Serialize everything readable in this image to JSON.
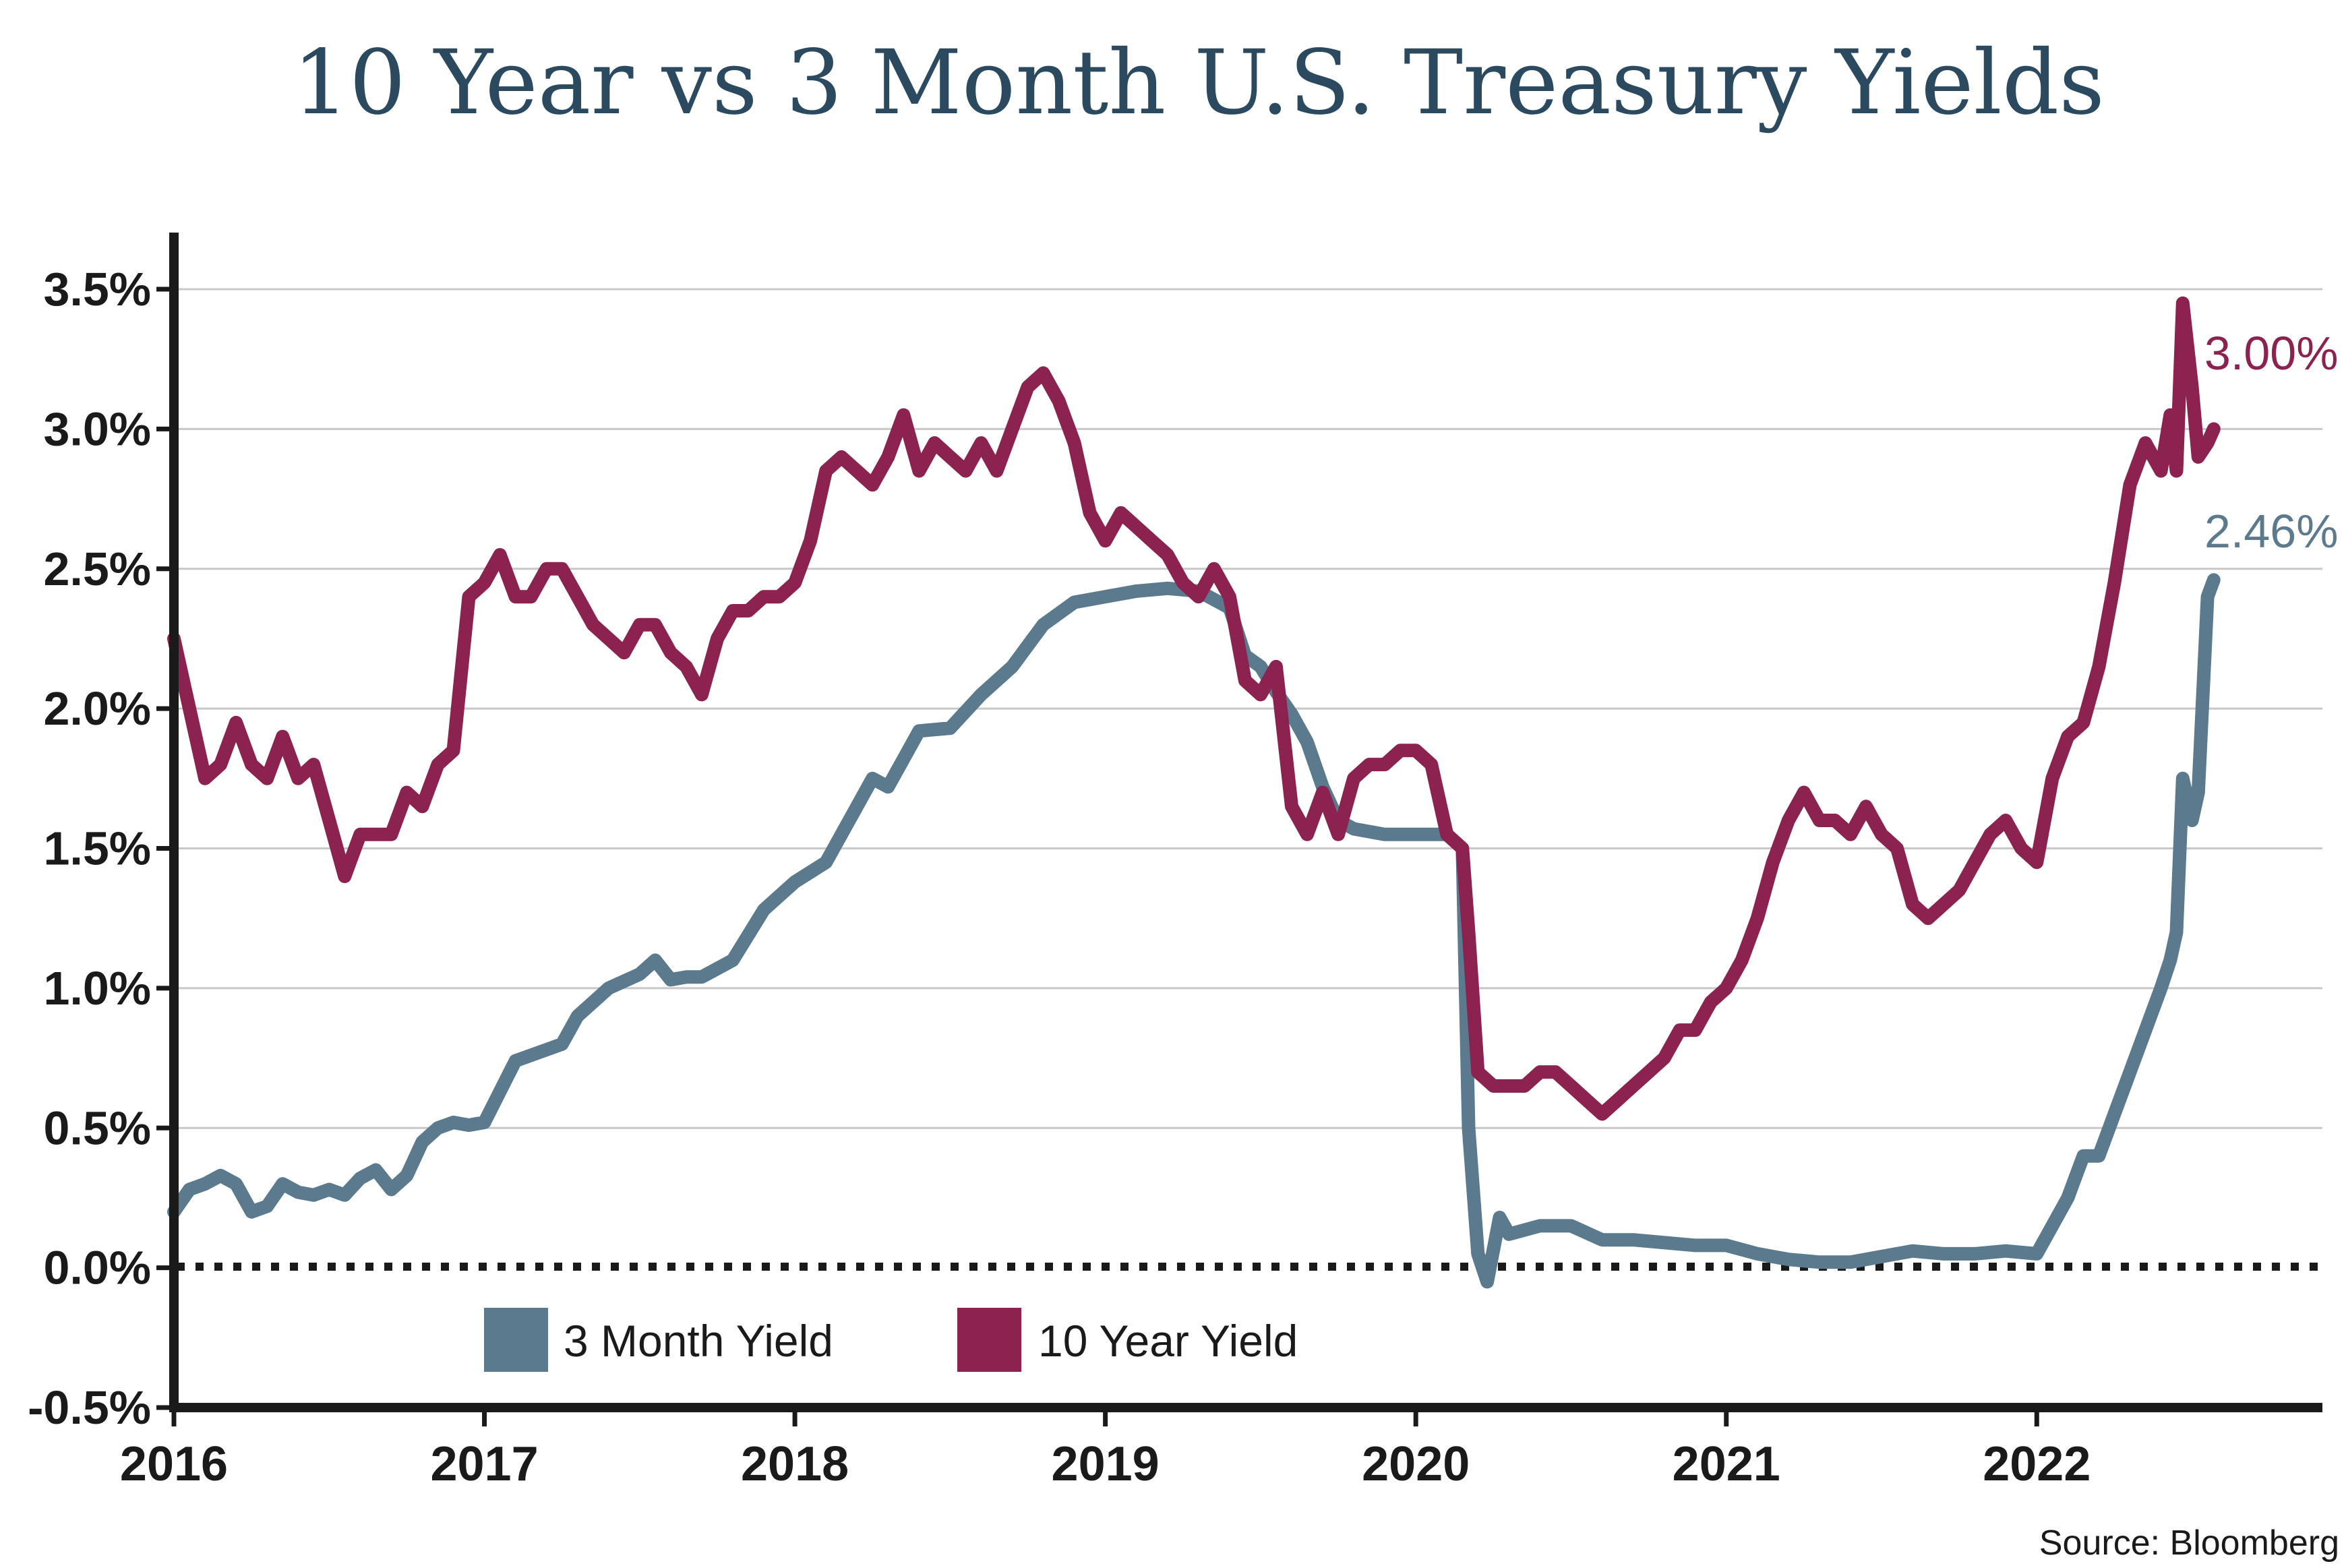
{
  "chart_data": {
    "type": "line",
    "title": "10 Year vs 3 Month U.S. Treasury Yields",
    "source": "Source: Bloomberg",
    "xlabel": "",
    "ylabel": "",
    "xlim": [
      2016.0,
      2022.92
    ],
    "ylim": [
      -0.5,
      3.5
    ],
    "y_ticks": [
      -0.5,
      0.0,
      0.5,
      1.0,
      1.5,
      2.0,
      2.5,
      3.0,
      3.5
    ],
    "y_tick_labels": [
      "-0.5%",
      "0.0%",
      "0.5%",
      "1.0%",
      "1.5%",
      "2.0%",
      "2.5%",
      "3.0%",
      "3.5%"
    ],
    "x_ticks": [
      2016,
      2017,
      2018,
      2019,
      2020,
      2021,
      2022
    ],
    "x_tick_labels": [
      "2016",
      "2017",
      "2018",
      "2019",
      "2020",
      "2021",
      "2022"
    ],
    "grid": "horizontal",
    "zero_line": "dotted",
    "legend_position": "bottom-left",
    "series": [
      {
        "name": "3 Month Yield",
        "color": "#5b7a8e",
        "end_label": "2.46%",
        "x": [
          2016.0,
          2016.05,
          2016.1,
          2016.15,
          2016.2,
          2016.25,
          2016.3,
          2016.35,
          2016.4,
          2016.45,
          2016.5,
          2016.55,
          2016.6,
          2016.65,
          2016.7,
          2016.75,
          2016.8,
          2016.85,
          2016.9,
          2016.95,
          2017.0,
          2017.1,
          2017.2,
          2017.25,
          2017.3,
          2017.4,
          2017.5,
          2017.55,
          2017.6,
          2017.65,
          2017.7,
          2017.8,
          2017.9,
          2018.0,
          2018.1,
          2018.2,
          2018.25,
          2018.3,
          2018.4,
          2018.5,
          2018.6,
          2018.7,
          2018.8,
          2018.9,
          2019.0,
          2019.1,
          2019.2,
          2019.3,
          2019.4,
          2019.45,
          2019.5,
          2019.55,
          2019.6,
          2019.65,
          2019.7,
          2019.75,
          2019.8,
          2019.9,
          2020.0,
          2020.1,
          2020.15,
          2020.17,
          2020.2,
          2020.23,
          2020.27,
          2020.3,
          2020.4,
          2020.5,
          2020.6,
          2020.7,
          2020.8,
          2020.9,
          2021.0,
          2021.1,
          2021.2,
          2021.3,
          2021.4,
          2021.5,
          2021.6,
          2021.7,
          2021.8,
          2021.9,
          2022.0,
          2022.05,
          2022.1,
          2022.15,
          2022.2,
          2022.25,
          2022.3,
          2022.35,
          2022.4,
          2022.43,
          2022.45,
          2022.47,
          2022.5,
          2022.52,
          2022.55,
          2022.57
        ],
        "y": [
          0.2,
          0.28,
          0.3,
          0.33,
          0.3,
          0.2,
          0.22,
          0.3,
          0.27,
          0.26,
          0.28,
          0.26,
          0.32,
          0.35,
          0.28,
          0.33,
          0.45,
          0.5,
          0.52,
          0.51,
          0.52,
          0.74,
          0.78,
          0.8,
          0.9,
          1.0,
          1.05,
          1.1,
          1.03,
          1.04,
          1.04,
          1.1,
          1.28,
          1.38,
          1.45,
          1.65,
          1.75,
          1.72,
          1.92,
          1.93,
          2.05,
          2.15,
          2.3,
          2.38,
          2.4,
          2.42,
          2.43,
          2.42,
          2.36,
          2.19,
          2.15,
          2.06,
          1.98,
          1.88,
          1.72,
          1.6,
          1.57,
          1.55,
          1.55,
          1.55,
          1.5,
          0.5,
          0.05,
          -0.05,
          0.18,
          0.12,
          0.15,
          0.15,
          0.1,
          0.1,
          0.09,
          0.08,
          0.08,
          0.05,
          0.03,
          0.02,
          0.02,
          0.04,
          0.06,
          0.05,
          0.05,
          0.06,
          0.05,
          0.15,
          0.25,
          0.4,
          0.4,
          0.55,
          0.7,
          0.85,
          1.0,
          1.1,
          1.2,
          1.75,
          1.6,
          1.7,
          2.4,
          2.46
        ]
      },
      {
        "name": "10 Year Yield",
        "color": "#8b2250",
        "end_label": "3.00%",
        "x": [
          2016.0,
          2016.05,
          2016.1,
          2016.15,
          2016.2,
          2016.25,
          2016.3,
          2016.35,
          2016.4,
          2016.45,
          2016.5,
          2016.55,
          2016.6,
          2016.65,
          2016.7,
          2016.75,
          2016.8,
          2016.85,
          2016.9,
          2016.95,
          2017.0,
          2017.05,
          2017.1,
          2017.15,
          2017.2,
          2017.25,
          2017.3,
          2017.35,
          2017.4,
          2017.45,
          2017.5,
          2017.55,
          2017.6,
          2017.65,
          2017.7,
          2017.75,
          2017.8,
          2017.85,
          2017.9,
          2017.95,
          2018.0,
          2018.05,
          2018.1,
          2018.15,
          2018.2,
          2018.25,
          2018.3,
          2018.35,
          2018.4,
          2018.45,
          2018.5,
          2018.55,
          2018.6,
          2018.65,
          2018.7,
          2018.75,
          2018.8,
          2018.85,
          2018.9,
          2018.95,
          2019.0,
          2019.05,
          2019.1,
          2019.15,
          2019.2,
          2019.25,
          2019.3,
          2019.35,
          2019.4,
          2019.45,
          2019.5,
          2019.55,
          2019.6,
          2019.65,
          2019.7,
          2019.75,
          2019.8,
          2019.85,
          2019.9,
          2019.95,
          2020.0,
          2020.05,
          2020.1,
          2020.15,
          2020.17,
          2020.2,
          2020.25,
          2020.3,
          2020.35,
          2020.4,
          2020.45,
          2020.5,
          2020.55,
          2020.6,
          2020.65,
          2020.7,
          2020.75,
          2020.8,
          2020.85,
          2020.9,
          2020.95,
          2021.0,
          2021.05,
          2021.1,
          2021.15,
          2021.2,
          2021.25,
          2021.3,
          2021.35,
          2021.4,
          2021.45,
          2021.5,
          2021.55,
          2021.6,
          2021.65,
          2021.7,
          2021.75,
          2021.8,
          2021.85,
          2021.9,
          2021.95,
          2022.0,
          2022.05,
          2022.1,
          2022.15,
          2022.2,
          2022.25,
          2022.3,
          2022.35,
          2022.4,
          2022.43,
          2022.45,
          2022.47,
          2022.5,
          2022.52,
          2022.55,
          2022.57
        ],
        "y": [
          2.25,
          2.0,
          1.75,
          1.8,
          1.95,
          1.8,
          1.75,
          1.9,
          1.75,
          1.8,
          1.6,
          1.4,
          1.55,
          1.55,
          1.55,
          1.7,
          1.65,
          1.8,
          1.85,
          2.4,
          2.45,
          2.55,
          2.4,
          2.4,
          2.5,
          2.5,
          2.4,
          2.3,
          2.25,
          2.2,
          2.3,
          2.3,
          2.2,
          2.15,
          2.05,
          2.25,
          2.35,
          2.35,
          2.4,
          2.4,
          2.45,
          2.6,
          2.85,
          2.9,
          2.85,
          2.8,
          2.9,
          3.05,
          2.85,
          2.95,
          2.9,
          2.85,
          2.95,
          2.85,
          3.0,
          3.15,
          3.2,
          3.1,
          2.95,
          2.7,
          2.6,
          2.7,
          2.65,
          2.6,
          2.55,
          2.45,
          2.4,
          2.5,
          2.4,
          2.1,
          2.05,
          2.15,
          1.65,
          1.55,
          1.7,
          1.55,
          1.75,
          1.8,
          1.8,
          1.85,
          1.85,
          1.8,
          1.55,
          1.5,
          1.2,
          0.7,
          0.65,
          0.65,
          0.65,
          0.7,
          0.7,
          0.65,
          0.6,
          0.55,
          0.6,
          0.65,
          0.7,
          0.75,
          0.85,
          0.85,
          0.95,
          1.0,
          1.1,
          1.25,
          1.45,
          1.6,
          1.7,
          1.6,
          1.6,
          1.55,
          1.65,
          1.55,
          1.5,
          1.3,
          1.25,
          1.3,
          1.35,
          1.45,
          1.55,
          1.6,
          1.5,
          1.45,
          1.75,
          1.9,
          1.95,
          2.15,
          2.45,
          2.8,
          2.95,
          2.85,
          3.05,
          2.85,
          3.45,
          3.15,
          2.9,
          2.95,
          3.0
        ]
      }
    ]
  }
}
